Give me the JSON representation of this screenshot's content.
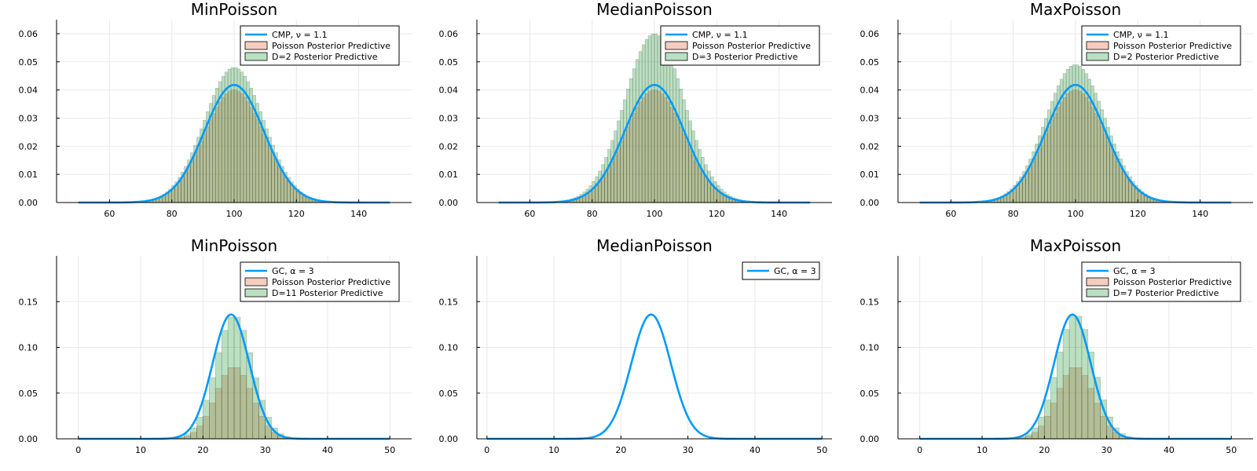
{
  "colors": {
    "line": "#009AF9",
    "poisson_fill": "#E26F46",
    "d_fill": "#3DA44D",
    "grid": "#e9e9e9",
    "frame": "#000000"
  },
  "chart_data": [
    {
      "type": "bar",
      "title": "MinPoisson",
      "xlim": [
        43,
        157
      ],
      "ylim": [
        0,
        0.065
      ],
      "xticks": [
        60,
        80,
        100,
        120,
        140
      ],
      "yticks": [
        0.0,
        0.01,
        0.02,
        0.03,
        0.04,
        0.05,
        0.06
      ],
      "ytick_labels": [
        "0.00",
        "0.01",
        "0.02",
        "0.03",
        "0.04",
        "0.05",
        "0.06"
      ],
      "legend_position": "top-right",
      "series": [
        {
          "name": "CMP, ν = 1.1",
          "kind": "line",
          "dist": "normal",
          "mean": 100,
          "peak": 0.0418,
          "x_range": [
            50,
            150
          ]
        },
        {
          "name": "Poisson Posterior Predictive",
          "kind": "hist",
          "dist": "normal",
          "mean": 100,
          "peak": 0.04,
          "bin_start": 60,
          "bin_end": 140,
          "bin_width": 1
        },
        {
          "name": "D=2 Posterior Predictive",
          "kind": "hist",
          "dist": "normal",
          "mean": 100,
          "peak": 0.048,
          "bin_start": 65,
          "bin_end": 135,
          "bin_width": 1
        }
      ]
    },
    {
      "type": "bar",
      "title": "MedianPoisson",
      "xlim": [
        43,
        157
      ],
      "ylim": [
        0,
        0.065
      ],
      "xticks": [
        60,
        80,
        100,
        120,
        140
      ],
      "yticks": [
        0.0,
        0.01,
        0.02,
        0.03,
        0.04,
        0.05,
        0.06
      ],
      "ytick_labels": [
        "0.00",
        "0.01",
        "0.02",
        "0.03",
        "0.04",
        "0.05",
        "0.06"
      ],
      "legend_position": "top-right",
      "series": [
        {
          "name": "CMP, ν = 1.1",
          "kind": "line",
          "dist": "normal",
          "mean": 100,
          "peak": 0.0418,
          "x_range": [
            50,
            150
          ]
        },
        {
          "name": "Poisson Posterior Predictive",
          "kind": "hist",
          "dist": "normal",
          "mean": 100,
          "peak": 0.04,
          "bin_start": 60,
          "bin_end": 140,
          "bin_width": 1
        },
        {
          "name": "D=3 Posterior Predictive",
          "kind": "hist",
          "dist": "normal",
          "mean": 100,
          "peak": 0.06,
          "bin_start": 70,
          "bin_end": 130,
          "bin_width": 1
        }
      ]
    },
    {
      "type": "bar",
      "title": "MaxPoisson",
      "xlim": [
        43,
        157
      ],
      "ylim": [
        0,
        0.065
      ],
      "xticks": [
        60,
        80,
        100,
        120,
        140
      ],
      "yticks": [
        0.0,
        0.01,
        0.02,
        0.03,
        0.04,
        0.05,
        0.06
      ],
      "ytick_labels": [
        "0.00",
        "0.01",
        "0.02",
        "0.03",
        "0.04",
        "0.05",
        "0.06"
      ],
      "legend_position": "top-right",
      "series": [
        {
          "name": "CMP, ν = 1.1",
          "kind": "line",
          "dist": "normal",
          "mean": 100,
          "peak": 0.0418,
          "x_range": [
            50,
            150
          ]
        },
        {
          "name": "Poisson Posterior Predictive",
          "kind": "hist",
          "dist": "normal",
          "mean": 100,
          "peak": 0.04,
          "bin_start": 60,
          "bin_end": 140,
          "bin_width": 1
        },
        {
          "name": "D=2 Posterior Predictive",
          "kind": "hist",
          "dist": "normal",
          "mean": 100,
          "peak": 0.049,
          "bin_start": 65,
          "bin_end": 135,
          "bin_width": 1
        }
      ]
    },
    {
      "type": "bar",
      "title": "MinPoisson",
      "xlim": [
        -3.5,
        53.5
      ],
      "ylim": [
        0,
        0.2
      ],
      "xticks": [
        0,
        10,
        20,
        30,
        40,
        50
      ],
      "yticks": [
        0.0,
        0.05,
        0.1,
        0.15
      ],
      "ytick_labels": [
        "0.00",
        "0.05",
        "0.10",
        "0.15"
      ],
      "legend_position": "top-right",
      "series": [
        {
          "name": "GC, α = 3",
          "kind": "line",
          "dist": "normal",
          "mean": 24.5,
          "peak": 0.136,
          "x_range": [
            0,
            50
          ]
        },
        {
          "name": "Poisson Posterior Predictive",
          "kind": "hist",
          "dist": "normal",
          "mean": 25,
          "peak": 0.079,
          "bin_start": 10,
          "bin_end": 44,
          "bin_width": 1
        },
        {
          "name": "D=11 Posterior Predictive",
          "kind": "hist",
          "dist": "normal",
          "mean": 25,
          "peak": 0.135,
          "bin_start": 15,
          "bin_end": 35,
          "bin_width": 1
        }
      ]
    },
    {
      "type": "line",
      "title": "MedianPoisson",
      "xlim": [
        -1.5,
        51.5
      ],
      "ylim": [
        0,
        0.2
      ],
      "xticks": [
        0,
        10,
        20,
        30,
        40,
        50
      ],
      "yticks": [
        0.0,
        0.05,
        0.1,
        0.15
      ],
      "ytick_labels": [
        "0.00",
        "0.05",
        "0.10",
        "0.15"
      ],
      "legend_position": "top-right",
      "series": [
        {
          "name": "GC, α = 3",
          "kind": "line",
          "dist": "normal",
          "mean": 24.5,
          "peak": 0.136,
          "x_range": [
            0,
            50
          ]
        }
      ]
    },
    {
      "type": "bar",
      "title": "MaxPoisson",
      "xlim": [
        -3.5,
        53.5
      ],
      "ylim": [
        0,
        0.2
      ],
      "xticks": [
        0,
        10,
        20,
        30,
        40,
        50
      ],
      "yticks": [
        0.0,
        0.05,
        0.1,
        0.15
      ],
      "ytick_labels": [
        "0.00",
        "0.05",
        "0.10",
        "0.15"
      ],
      "legend_position": "top-right",
      "series": [
        {
          "name": "GC, α = 3",
          "kind": "line",
          "dist": "normal",
          "mean": 24.5,
          "peak": 0.136,
          "x_range": [
            0,
            50
          ]
        },
        {
          "name": "Poisson Posterior Predictive",
          "kind": "hist",
          "dist": "normal",
          "mean": 25,
          "peak": 0.079,
          "bin_start": 10,
          "bin_end": 44,
          "bin_width": 1
        },
        {
          "name": "D=7 Posterior Predictive",
          "kind": "hist",
          "dist": "normal",
          "mean": 25,
          "peak": 0.136,
          "bin_start": 15,
          "bin_end": 35,
          "bin_width": 1
        }
      ]
    }
  ]
}
